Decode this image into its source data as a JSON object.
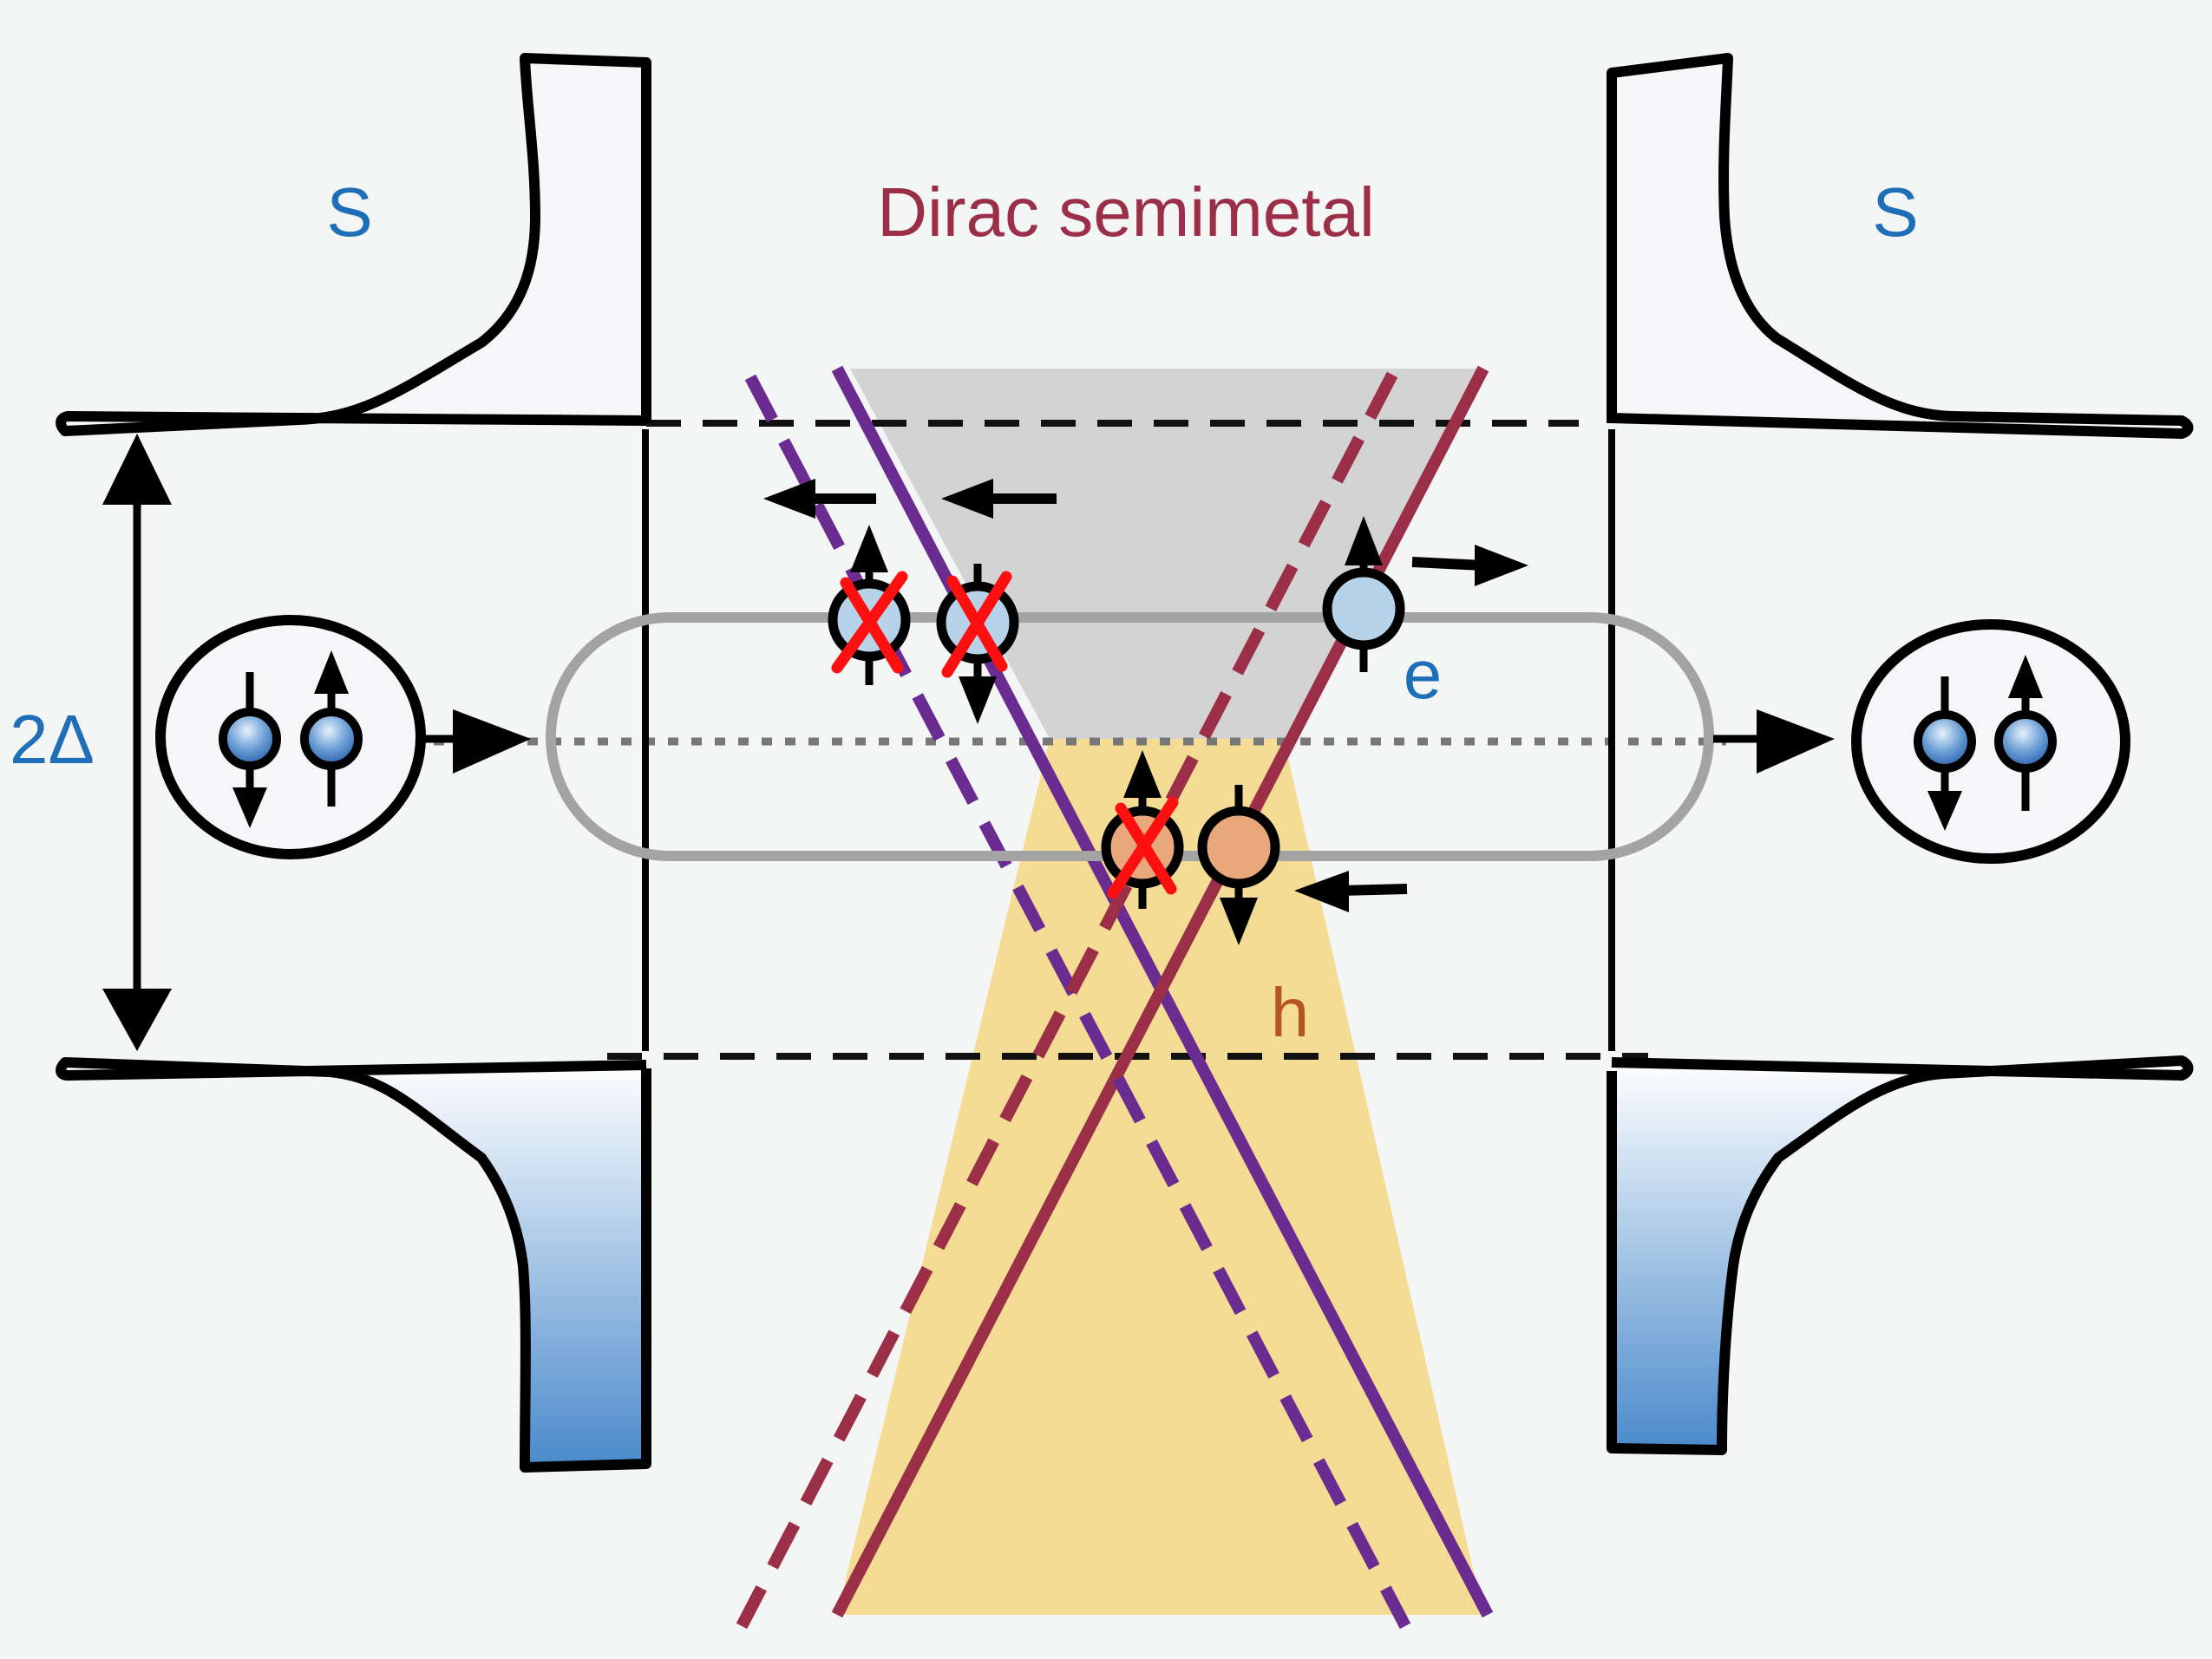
{
  "labels": {
    "left_superconductor": "S",
    "right_superconductor": "S",
    "middle_region": "Dirac semimetal",
    "gap": "2Δ",
    "electron": "e",
    "hole": "h"
  },
  "colors": {
    "background": "#f4f6f5",
    "superconductor_label": "#1f6fb8",
    "dirac_label": "#9b2f48",
    "dirac_line_a": "#9b2f48",
    "dirac_line_b": "#6a2c91",
    "upper_cone": "#d3d3d4",
    "lower_cone": "#f5dc95",
    "electron_fill": "#b6d3ea",
    "hole_fill": "#e9a87c",
    "hole_label": "#b5561f",
    "cross_mark": "#ff1010",
    "loop": "#a3a3a3"
  }
}
